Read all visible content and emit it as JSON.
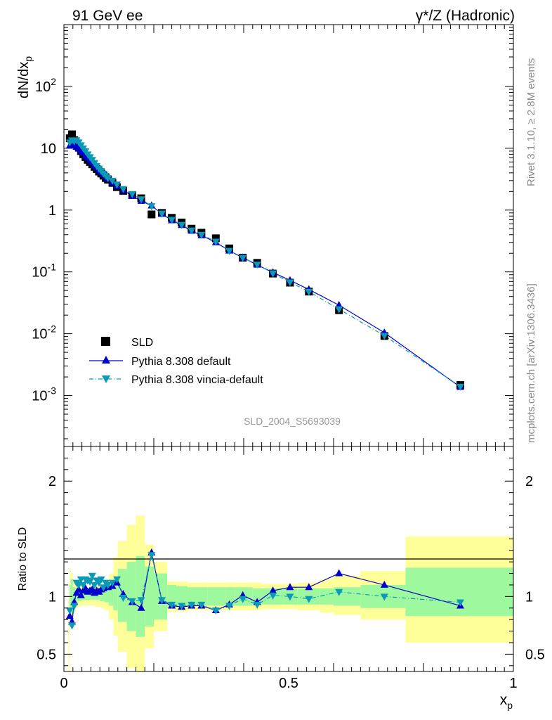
{
  "header": {
    "left_title": "91 GeV ee",
    "right_title": "γ*/Z (Hadronic)"
  },
  "side_labels": {
    "rivet": "Rivet 3.1.10, ≥ 2.8M events",
    "mcplots": "mcplots.cern.ch [arXiv:1306.3436]"
  },
  "analysis_id": "SLD_2004_S5693039",
  "legend": [
    {
      "label": "SLD",
      "color": "#000000",
      "marker": "square"
    },
    {
      "label": "Pythia 8.308 default",
      "color": "#0000cc",
      "marker": "triangle-up"
    },
    {
      "label": "Pythia 8.308 vincia-default",
      "color": "#0a9ab8",
      "marker": "triangle-down"
    }
  ],
  "chart_data": [
    {
      "type": "line",
      "panel": "main",
      "ylabel": "dN/dxp",
      "yscale": "log",
      "ylim": [
        0.00015,
        1000
      ],
      "xlim": [
        0,
        1
      ],
      "yticks": [
        {
          "label": "10",
          "sup": "-3",
          "value": 0.001
        },
        {
          "label": "10",
          "sup": "-2",
          "value": 0.01
        },
        {
          "label": "10",
          "sup": "-1",
          "value": 0.1
        },
        {
          "label": "1",
          "sup": "",
          "value": 1
        },
        {
          "label": "10",
          "sup": "",
          "value": 10
        },
        {
          "label": "10",
          "sup": "2",
          "value": 100
        }
      ],
      "x": [
        0.013,
        0.018,
        0.023,
        0.028,
        0.033,
        0.038,
        0.043,
        0.048,
        0.053,
        0.058,
        0.063,
        0.068,
        0.073,
        0.078,
        0.083,
        0.088,
        0.093,
        0.098,
        0.108,
        0.118,
        0.132,
        0.152,
        0.172,
        0.195,
        0.218,
        0.24,
        0.262,
        0.284,
        0.306,
        0.338,
        0.368,
        0.398,
        0.43,
        0.465,
        0.503,
        0.545,
        0.612,
        0.713,
        0.882
      ],
      "series": [
        {
          "name": "SLD",
          "color": "#000000",
          "marker": "square",
          "values": [
            14.5,
            16.8,
            13.5,
            12.0,
            10.5,
            9.0,
            8.0,
            7.2,
            6.5,
            6.0,
            5.5,
            5.0,
            4.6,
            4.2,
            3.9,
            3.6,
            3.3,
            3.1,
            2.75,
            2.35,
            2.05,
            1.75,
            1.55,
            0.85,
            0.9,
            0.75,
            0.63,
            0.5,
            0.43,
            0.35,
            0.24,
            0.17,
            0.14,
            0.094,
            0.067,
            0.048,
            0.024,
            0.0092,
            0.00148
          ]
        },
        {
          "name": "Pythia 8.308 default",
          "color": "#0000cc",
          "marker": "triangle-up",
          "linestyle": "solid",
          "values": [
            11.0,
            11.5,
            11.0,
            10.5,
            9.8,
            9.0,
            8.4,
            7.6,
            7.0,
            6.4,
            5.9,
            5.3,
            4.9,
            4.4,
            4.1,
            3.8,
            3.5,
            3.2,
            2.8,
            2.45,
            2.1,
            1.7,
            1.4,
            1.18,
            0.87,
            0.68,
            0.57,
            0.46,
            0.39,
            0.3,
            0.22,
            0.17,
            0.13,
            0.098,
            0.073,
            0.052,
            0.029,
            0.0104,
            0.00137
          ]
        },
        {
          "name": "Pythia 8.308 vincia-default",
          "color": "#0a9ab8",
          "marker": "triangle-down",
          "linestyle": "dashdot",
          "values": [
            12.5,
            13.5,
            13.0,
            13.5,
            12.5,
            11.2,
            10.0,
            9.0,
            8.0,
            7.2,
            6.5,
            5.8,
            5.2,
            4.7,
            4.3,
            3.9,
            3.6,
            3.3,
            3.0,
            2.6,
            2.2,
            1.82,
            1.5,
            1.16,
            0.88,
            0.7,
            0.58,
            0.47,
            0.4,
            0.31,
            0.22,
            0.17,
            0.132,
            0.095,
            0.068,
            0.048,
            0.025,
            0.0093,
            0.0014
          ]
        }
      ]
    },
    {
      "type": "line",
      "panel": "ratio",
      "xlabel": "xp",
      "ylabel": "Ratio to SLD",
      "ylim": [
        0.35,
        2.3
      ],
      "xlim": [
        0,
        1
      ],
      "yticks": [
        0.5,
        1,
        2
      ],
      "xticks": [
        0,
        0.5,
        1
      ],
      "x": [
        0.013,
        0.018,
        0.023,
        0.028,
        0.033,
        0.038,
        0.043,
        0.048,
        0.053,
        0.058,
        0.063,
        0.068,
        0.073,
        0.078,
        0.083,
        0.088,
        0.093,
        0.098,
        0.108,
        0.118,
        0.132,
        0.152,
        0.172,
        0.195,
        0.218,
        0.24,
        0.262,
        0.284,
        0.306,
        0.338,
        0.368,
        0.398,
        0.43,
        0.465,
        0.503,
        0.545,
        0.612,
        0.713,
        0.882
      ],
      "series": [
        {
          "name": "Pythia 8.308 default",
          "color": "#0000cc",
          "marker": "triangle-up",
          "linestyle": "solid",
          "values": [
            0.83,
            0.78,
            0.95,
            1.03,
            1.06,
            1.01,
            1.05,
            1.07,
            1.04,
            1.05,
            1.06,
            1.03,
            1.05,
            1.04,
            1.06,
            1.07,
            1.09,
            1.08,
            1.09,
            1.12,
            1.02,
            0.95,
            0.9,
            1.38,
            0.96,
            0.92,
            0.91,
            0.92,
            0.92,
            0.88,
            0.93,
            1.01,
            0.95,
            1.05,
            1.08,
            1.08,
            1.2,
            1.1,
            0.92
          ]
        },
        {
          "name": "Pythia 8.308 vincia-default",
          "color": "#0a9ab8",
          "marker": "triangle-down",
          "linestyle": "dashdot",
          "values": [
            0.88,
            0.75,
            0.92,
            1.12,
            1.1,
            1.15,
            1.1,
            1.15,
            1.14,
            1.13,
            1.18,
            1.1,
            1.14,
            1.12,
            1.15,
            1.08,
            1.12,
            1.1,
            1.12,
            1.15,
            0.99,
            0.96,
            0.97,
            1.36,
            0.97,
            0.93,
            0.92,
            0.93,
            0.93,
            0.88,
            0.92,
            0.98,
            0.93,
            1.01,
            1.0,
            0.98,
            1.04,
            1.0,
            0.95
          ]
        }
      ],
      "bands": {
        "edges": [
          0.01,
          0.0125,
          0.015,
          0.02,
          0.025,
          0.03,
          0.04,
          0.05,
          0.06,
          0.07,
          0.08,
          0.09,
          0.1,
          0.11,
          0.12,
          0.14,
          0.16,
          0.18,
          0.2,
          0.23,
          0.25,
          0.275,
          0.3,
          0.32,
          0.36,
          0.38,
          0.42,
          0.44,
          0.49,
          0.52,
          0.57,
          0.6,
          0.66,
          0.76,
          1.0
        ],
        "inner_low": [
          0.0,
          0.9,
          0.85,
          0.92,
          0.95,
          0.96,
          0.97,
          0.97,
          0.97,
          0.97,
          0.96,
          0.95,
          0.92,
          0.88,
          0.78,
          0.7,
          0.65,
          0.74,
          0.8,
          0.9,
          0.91,
          0.92,
          0.92,
          0.92,
          0.92,
          0.92,
          0.93,
          0.93,
          0.93,
          0.93,
          0.93,
          0.92,
          0.9,
          0.83
        ],
        "inner_high": [
          0.0,
          1.1,
          1.15,
          1.08,
          1.05,
          1.04,
          1.03,
          1.04,
          1.04,
          1.04,
          1.05,
          1.06,
          1.09,
          1.14,
          1.24,
          1.3,
          1.35,
          1.26,
          1.2,
          1.1,
          1.09,
          1.08,
          1.08,
          1.08,
          1.08,
          1.08,
          1.07,
          1.07,
          1.07,
          1.07,
          1.07,
          1.08,
          1.1,
          1.25
        ],
        "outer_low": [
          0.0,
          0.85,
          0.8,
          0.86,
          0.9,
          0.91,
          0.92,
          0.92,
          0.92,
          0.91,
          0.9,
          0.88,
          0.8,
          0.66,
          0.52,
          0.38,
          0.3,
          0.55,
          0.7,
          0.87,
          0.87,
          0.88,
          0.88,
          0.88,
          0.88,
          0.88,
          0.88,
          0.89,
          0.89,
          0.88,
          0.86,
          0.84,
          0.8,
          0.6
        ],
        "outer_high": [
          1.0,
          1.25,
          1.2,
          1.14,
          1.1,
          1.09,
          1.08,
          1.08,
          1.08,
          1.09,
          1.1,
          1.12,
          1.2,
          1.34,
          1.48,
          1.62,
          1.7,
          1.45,
          1.3,
          1.13,
          1.13,
          1.12,
          1.12,
          1.12,
          1.12,
          1.12,
          1.12,
          1.11,
          1.11,
          1.12,
          1.15,
          1.18,
          1.22,
          1.52
        ],
        "inner_color": "#9ef89e",
        "outer_color": "#ffff99"
      }
    }
  ]
}
